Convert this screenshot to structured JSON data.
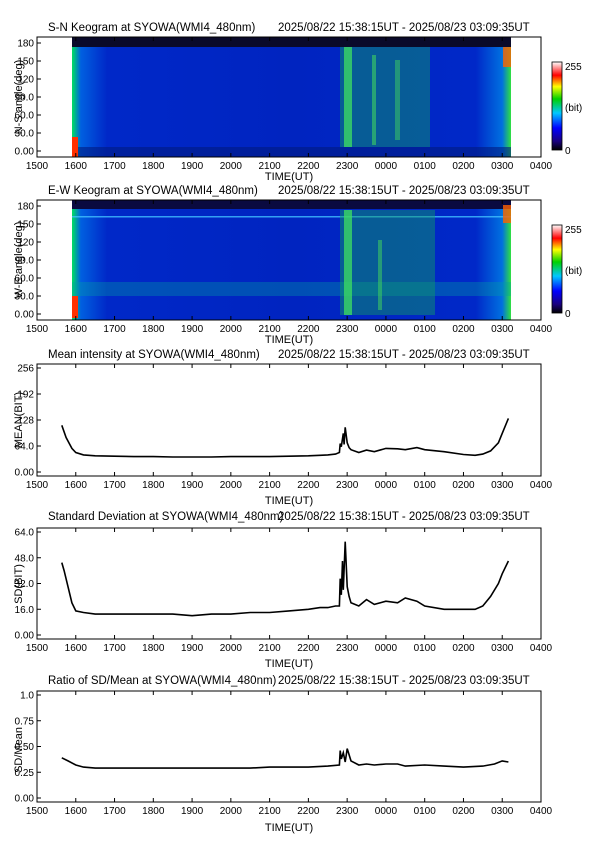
{
  "x_ticks": [
    "1500",
    "1600",
    "1700",
    "1800",
    "1900",
    "2000",
    "2100",
    "2200",
    "2300",
    "0000",
    "0100",
    "0200",
    "0300",
    "0400"
  ],
  "colorbar": {
    "max_label": "255",
    "unit_label": "(bit)",
    "min_label": "0"
  },
  "panels": {
    "sn": {
      "title": "S-N Keogram at SYOWA(WMI4_480nm)",
      "time_range": "2025/08/22 15:38:15UT - 2025/08/23 03:09:35UT",
      "ylabel": "N-S angle(deg)",
      "xlabel": "TIME(UT)",
      "yticks": [
        "0.00",
        "30.0",
        "60.0",
        "90.0",
        "120",
        "150",
        "180"
      ]
    },
    "ew": {
      "title": "E-W Keogram at SYOWA(WMI4_480nm)",
      "time_range": "2025/08/22 15:38:15UT - 2025/08/23 03:09:35UT",
      "ylabel": "W-E angle(deg)",
      "xlabel": "TIME(UT)",
      "yticks": [
        "0.00",
        "30.0",
        "60.0",
        "90.0",
        "120",
        "150",
        "180"
      ]
    },
    "mean": {
      "title": "Mean intensity at SYOWA(WMI4_480nm)",
      "time_range": "2025/08/22 15:38:15UT - 2025/08/23 03:09:35UT",
      "ylabel": "MEAN(BIT)",
      "xlabel": "TIME(UT)",
      "yticks": [
        "0.00",
        "64.0",
        "128",
        "192",
        "256"
      ]
    },
    "sd": {
      "title": "Standard Deviation at SYOWA(WMI4_480nm)",
      "time_range": "2025/08/22 15:38:15UT - 2025/08/23 03:09:35UT",
      "ylabel": "SD(BIT)",
      "xlabel": "TIME(UT)",
      "yticks": [
        "0.00",
        "16.0",
        "32.0",
        "48.0",
        "64.0"
      ]
    },
    "ratio": {
      "title": "Ratio of SD/Mean at SYOWA(WMI4_480nm)",
      "time_range": "2025/08/22 15:38:15UT - 2025/08/23 03:09:35UT",
      "ylabel": "SD/Mean",
      "xlabel": "TIME(UT)",
      "yticks": [
        "0.00",
        "0.25",
        "0.50",
        "0.75",
        "1.0"
      ]
    }
  },
  "chart_data": [
    {
      "type": "heatmap",
      "id": "sn",
      "xlim_hours": [
        15,
        28
      ],
      "ylim": [
        0,
        180
      ],
      "clim": [
        0,
        255
      ],
      "data_start_hour": 15.64,
      "data_end_hour": 27.16
    },
    {
      "type": "heatmap",
      "id": "ew",
      "xlim_hours": [
        15,
        28
      ],
      "ylim": [
        0,
        180
      ],
      "clim": [
        0,
        255
      ],
      "data_start_hour": 15.64,
      "data_end_hour": 27.16
    },
    {
      "type": "line",
      "id": "mean",
      "xlim_hours": [
        15,
        28
      ],
      "ylim": [
        0,
        256
      ],
      "x_unit": "hours UT (24+ = next day)",
      "x": [
        15.64,
        15.75,
        15.9,
        16.0,
        16.2,
        16.5,
        17.0,
        17.5,
        18.0,
        18.5,
        19.0,
        19.5,
        20.0,
        20.5,
        21.0,
        21.5,
        22.0,
        22.3,
        22.5,
        22.7,
        22.8,
        22.82,
        22.85,
        22.9,
        22.92,
        22.95,
        23.0,
        23.05,
        23.1,
        23.3,
        23.5,
        23.7,
        24.0,
        24.3,
        24.5,
        24.8,
        25.0,
        25.5,
        26.0,
        26.3,
        26.5,
        26.7,
        26.9,
        27.0,
        27.16
      ],
      "y": [
        115,
        85,
        58,
        48,
        42,
        40,
        39,
        38,
        38,
        37,
        37,
        37,
        38,
        38,
        38,
        39,
        40,
        41,
        42,
        44,
        48,
        70,
        62,
        95,
        68,
        110,
        72,
        60,
        55,
        48,
        54,
        50,
        58,
        57,
        55,
        60,
        55,
        50,
        43,
        41,
        44,
        52,
        72,
        95,
        132
      ]
    },
    {
      "type": "line",
      "id": "sd",
      "xlim_hours": [
        15,
        28
      ],
      "ylim": [
        0,
        64
      ],
      "x_unit": "hours UT (24+ = next day)",
      "x": [
        15.64,
        15.7,
        15.8,
        15.9,
        16.0,
        16.2,
        16.5,
        17.0,
        17.5,
        18.0,
        18.5,
        19.0,
        19.5,
        20.0,
        20.5,
        21.0,
        21.5,
        22.0,
        22.3,
        22.5,
        22.7,
        22.8,
        22.82,
        22.85,
        22.88,
        22.9,
        22.95,
        23.0,
        23.05,
        23.1,
        23.3,
        23.5,
        23.7,
        24.0,
        24.3,
        24.5,
        24.8,
        25.0,
        25.5,
        26.0,
        26.3,
        26.5,
        26.7,
        26.9,
        27.0,
        27.16
      ],
      "y": [
        45,
        40,
        30,
        20,
        15,
        14,
        13,
        13,
        13,
        13,
        13,
        12,
        13,
        13,
        14,
        14,
        15,
        16,
        17,
        17,
        18,
        18,
        35,
        25,
        46,
        28,
        58,
        30,
        24,
        20,
        18,
        22,
        19,
        21,
        20,
        23,
        21,
        18,
        16,
        16,
        16,
        18,
        24,
        32,
        38,
        46
      ]
    },
    {
      "type": "line",
      "id": "ratio",
      "xlim_hours": [
        15,
        28
      ],
      "ylim": [
        0,
        1.0
      ],
      "x_unit": "hours UT (24+ = next day)",
      "x": [
        15.64,
        15.8,
        16.0,
        16.2,
        16.5,
        17.0,
        17.5,
        18.0,
        18.5,
        19.0,
        19.5,
        20.0,
        20.5,
        21.0,
        21.5,
        22.0,
        22.5,
        22.8,
        22.82,
        22.85,
        22.9,
        22.95,
        23.0,
        23.1,
        23.3,
        23.5,
        23.7,
        24.0,
        24.3,
        24.5,
        25.0,
        25.5,
        26.0,
        26.5,
        26.8,
        27.0,
        27.16
      ],
      "y": [
        0.39,
        0.36,
        0.32,
        0.3,
        0.29,
        0.29,
        0.29,
        0.29,
        0.29,
        0.29,
        0.29,
        0.29,
        0.29,
        0.3,
        0.3,
        0.3,
        0.31,
        0.32,
        0.46,
        0.38,
        0.44,
        0.35,
        0.48,
        0.36,
        0.32,
        0.33,
        0.32,
        0.33,
        0.33,
        0.31,
        0.32,
        0.31,
        0.3,
        0.31,
        0.33,
        0.36,
        0.35
      ]
    }
  ]
}
